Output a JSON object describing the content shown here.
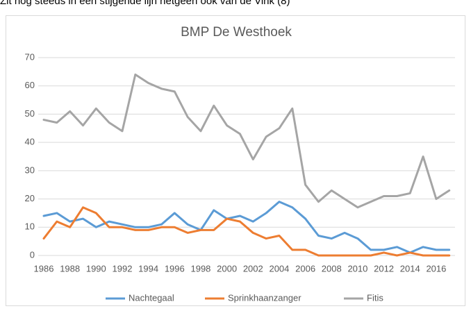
{
  "document": {
    "text": "Zit nog steeds in een stijgende lijn hetgeen ook van de Vink (8)"
  },
  "chart_data": {
    "type": "line",
    "title": "BMP De Westhoek",
    "categories": [
      "1986",
      null,
      "1988",
      null,
      "1990",
      null,
      "1992",
      null,
      "1994",
      null,
      "1996",
      null,
      "1998",
      null,
      "2000",
      null,
      "2002",
      null,
      "2004",
      null,
      "2006",
      null,
      "2008",
      null,
      "2010",
      null,
      "2012",
      null,
      "2014",
      null,
      "2016",
      null
    ],
    "series": [
      {
        "name": "Nachtegaal",
        "color": "#5b9bd5",
        "values": [
          14,
          15,
          12,
          13,
          10,
          12,
          11,
          10,
          10,
          11,
          15,
          11,
          9,
          16,
          13,
          14,
          12,
          15,
          19,
          17,
          13,
          7,
          6,
          8,
          6,
          2,
          2,
          3,
          1,
          3,
          2,
          2
        ]
      },
      {
        "name": "Sprinkhaanzanger",
        "color": "#ed7d31",
        "values": [
          6,
          12,
          10,
          17,
          15,
          10,
          10,
          9,
          9,
          10,
          10,
          8,
          9,
          9,
          13,
          12,
          8,
          6,
          7,
          2,
          2,
          0,
          0,
          0,
          0,
          0,
          1,
          0,
          1,
          0,
          0,
          0
        ]
      },
      {
        "name": "Fitis",
        "color": "#a5a5a5",
        "values": [
          48,
          47,
          51,
          46,
          52,
          47,
          44,
          64,
          61,
          59,
          58,
          49,
          44,
          53,
          46,
          43,
          34,
          42,
          45,
          52,
          25,
          19,
          23,
          20,
          17,
          19,
          21,
          21,
          22,
          35,
          20,
          23
        ]
      }
    ],
    "ylim": [
      0,
      70
    ],
    "yticks": [
      0,
      10,
      20,
      30,
      40,
      50,
      60,
      70
    ],
    "grid": true,
    "legend": "bottom"
  }
}
